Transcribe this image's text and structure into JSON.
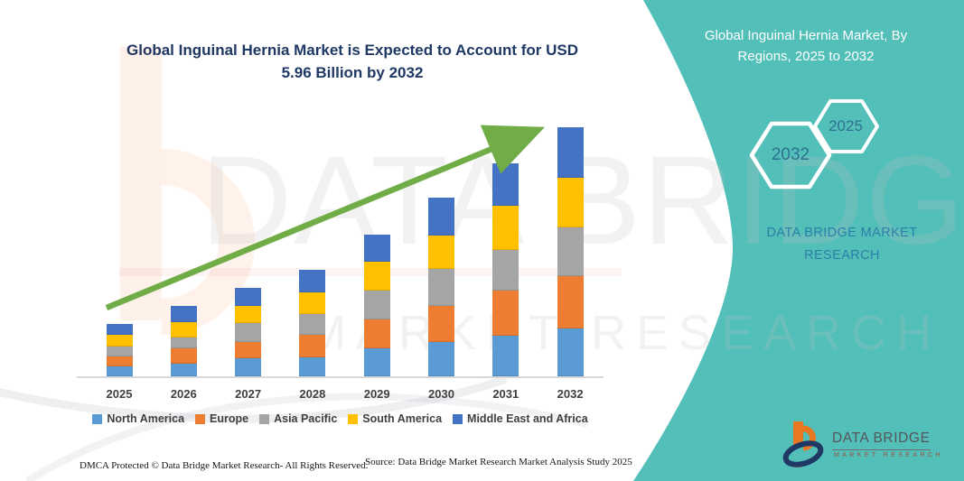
{
  "chart_data": {
    "type": "bar",
    "stacked": true,
    "title": "Global Inguinal Hernia Market is Expected to Account for USD 5.96 Billion by 2032",
    "unit": "USD Billion",
    "categories": [
      "2025",
      "2026",
      "2027",
      "2028",
      "2029",
      "2030",
      "2031",
      "2032"
    ],
    "series": [
      {
        "name": "North America",
        "color": "#5B9BD5",
        "values": [
          0.24,
          0.3,
          0.43,
          0.45,
          0.66,
          0.83,
          0.97,
          1.15
        ]
      },
      {
        "name": "Europe",
        "color": "#ED7D31",
        "values": [
          0.23,
          0.36,
          0.4,
          0.55,
          0.71,
          0.86,
          1.08,
          1.26
        ]
      },
      {
        "name": "Asia Pacific",
        "color": "#A5A5A5",
        "values": [
          0.24,
          0.27,
          0.45,
          0.5,
          0.68,
          0.88,
          0.97,
          1.15
        ]
      },
      {
        "name": "South America",
        "color": "#FFC000",
        "values": [
          0.29,
          0.37,
          0.4,
          0.52,
          0.7,
          0.81,
          1.06,
          1.19
        ]
      },
      {
        "name": "Middle East and Africa",
        "color": "#4472C4",
        "values": [
          0.25,
          0.38,
          0.45,
          0.54,
          0.63,
          0.89,
          1.02,
          1.21
        ]
      }
    ],
    "totals": [
      1.25,
      1.68,
      2.13,
      2.56,
      3.38,
      4.27,
      5.1,
      5.96
    ],
    "ylim": [
      0,
      6.2
    ],
    "grid": false,
    "legend_position": "bottom",
    "annotations": [
      "green upward growth arrow from 2025 bar to 2032 bar"
    ]
  },
  "side_panel": {
    "title": "Global Inguinal Hernia Market, By Regions, 2025 to 2032",
    "badges": [
      {
        "label": "2032"
      },
      {
        "label": "2025"
      }
    ],
    "brand": "DATA BRIDGE MARKET RESEARCH",
    "bg_color": "#52BFB8"
  },
  "watermark": {
    "line1": "DATA BRIDGE",
    "line2": "MARKET RESEARCH"
  },
  "footer": {
    "dmca": "DMCA Protected © Data Bridge Market Research-  All Rights Reserved.",
    "source": "Source: Data Bridge Market Research  Market Analysis Study 2025"
  },
  "logo": {
    "line1": "DATA BRIDGE",
    "line2": "MARKET RESEARCH"
  },
  "colors": {
    "teal_panel": "#52BFB8",
    "panel_text": "#2E7FA8",
    "hexagon_text": "#2E7191",
    "title_text": "#1F3864",
    "axis_label": "#3F3F3F",
    "arrow_green": "#70AD47",
    "logo_orange": "#E87722",
    "logo_navy": "#1F3864"
  }
}
